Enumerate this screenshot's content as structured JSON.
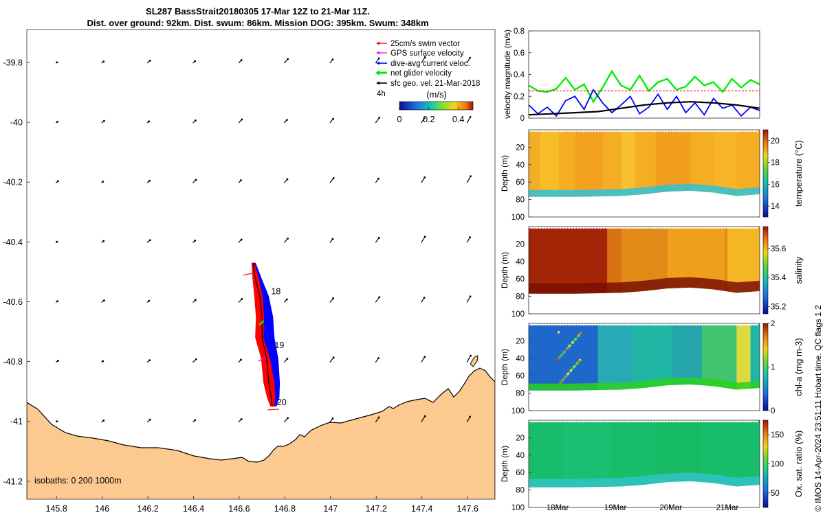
{
  "title": {
    "line1": "SL287 BassStrait20180305 17-Mar 12Z to 21-Mar 11Z.",
    "line2": "Dist. over ground: 92km. Dist. swum: 86km. Mission DOG: 395km. Swum: 348km"
  },
  "copyright": "© IMOS 14-Apr-2024 23:51:11 Hobart time. QC flags 1  2",
  "colors": {
    "land": "#fcc991",
    "swim": "#ff0000",
    "gps": "#ff00ff",
    "dive": "#0000ff",
    "net": "#00ee00",
    "geo": "#000000",
    "threshold": "#ff0000"
  },
  "chart_data": [
    {
      "id": "map",
      "type": "map",
      "xlim": [
        145.67,
        147.72
      ],
      "ylim": [
        -41.26,
        -39.69
      ],
      "xticks": [
        "145.8",
        "146",
        "146.2",
        "146.4",
        "146.6",
        "146.8",
        "147",
        "147.2",
        "147.4",
        "147.6"
      ],
      "xtick_values": [
        145.8,
        146,
        146.2,
        146.4,
        146.6,
        146.8,
        147,
        147.2,
        147.4,
        147.6
      ],
      "yticks": [
        "-39.8",
        "-40",
        "-40.2",
        "-40.4",
        "-40.6",
        "-40.8",
        "-41",
        "-41.2"
      ],
      "ytick_values": [
        -39.8,
        -40,
        -40.2,
        -40.4,
        -40.6,
        -40.8,
        -41,
        -41.2
      ],
      "legend": [
        "25cm/s swim vector",
        "GPS surface velocity",
        "dive-avg current veloc.",
        "net glider velocity",
        "sfc geo. vel. 21-Mar-2018"
      ],
      "legend_extra": "4h",
      "colorbar": {
        "label": "(m/s)",
        "ticks": [
          "0",
          "0.2",
          "0.4"
        ],
        "tick_values": [
          0,
          0.2,
          0.4
        ],
        "range": [
          0,
          0.5
        ]
      },
      "isobaths_label": "isobaths: 0   200  1000m",
      "day_labels": [
        {
          "text": "18",
          "lon": 146.74,
          "lat": -40.575
        },
        {
          "text": "19",
          "lon": 146.755,
          "lat": -40.755
        },
        {
          "text": "20",
          "lon": 146.765,
          "lat": -40.945
        }
      ],
      "track": [
        [
          146.66,
          -40.47
        ],
        [
          146.67,
          -40.52
        ],
        [
          146.69,
          -40.58
        ],
        [
          146.7,
          -40.65
        ],
        [
          146.7,
          -40.72
        ],
        [
          146.72,
          -40.79
        ],
        [
          146.73,
          -40.87
        ],
        [
          146.74,
          -40.92
        ],
        [
          146.745,
          -40.95
        ]
      ]
    },
    {
      "id": "velocity",
      "type": "line",
      "ylabel": "velocity magnitude (m/s)",
      "ylim": [
        0,
        0.8
      ],
      "yticks": [
        "0",
        "0.2",
        "0.4",
        "0.6",
        "0.8"
      ],
      "ytick_values": [
        0,
        0.2,
        0.4,
        0.6,
        0.8
      ],
      "threshold": 0.25,
      "series": [
        {
          "name": "net glider velocity",
          "color": "#00ee00",
          "x": [
            0,
            0.04,
            0.08,
            0.12,
            0.16,
            0.2,
            0.24,
            0.28,
            0.32,
            0.36,
            0.4,
            0.44,
            0.48,
            0.52,
            0.56,
            0.6,
            0.64,
            0.68,
            0.72,
            0.76,
            0.8,
            0.84,
            0.88,
            0.92,
            0.96,
            1
          ],
          "values": [
            0.3,
            0.25,
            0.24,
            0.27,
            0.37,
            0.26,
            0.31,
            0.15,
            0.28,
            0.43,
            0.3,
            0.26,
            0.39,
            0.25,
            0.33,
            0.36,
            0.26,
            0.29,
            0.38,
            0.3,
            0.33,
            0.24,
            0.36,
            0.28,
            0.35,
            0.31
          ]
        },
        {
          "name": "dive-avg current veloc.",
          "color": "#0000ff",
          "x": [
            0,
            0.04,
            0.08,
            0.12,
            0.16,
            0.2,
            0.24,
            0.28,
            0.32,
            0.36,
            0.4,
            0.44,
            0.48,
            0.52,
            0.56,
            0.6,
            0.64,
            0.68,
            0.72,
            0.76,
            0.8,
            0.84,
            0.88,
            0.92,
            0.96,
            1
          ],
          "values": [
            0.12,
            0.04,
            0.1,
            0.02,
            0.16,
            0.2,
            0.08,
            0.26,
            0.14,
            0.05,
            0.12,
            0.2,
            0.04,
            0.1,
            0.22,
            0.08,
            0.2,
            0.05,
            0.14,
            0.03,
            0.18,
            0.09,
            0.12,
            0.02,
            0.1,
            0.07
          ]
        },
        {
          "name": "sfc geo. vel.",
          "color": "#000000",
          "x": [
            0,
            0.1,
            0.2,
            0.3,
            0.4,
            0.5,
            0.6,
            0.7,
            0.8,
            0.9,
            1
          ],
          "values": [
            0.03,
            0.04,
            0.05,
            0.06,
            0.09,
            0.12,
            0.14,
            0.15,
            0.14,
            0.12,
            0.09
          ]
        }
      ]
    },
    {
      "id": "temperature",
      "type": "heatmap",
      "ylabel": "Depth (m)",
      "ylim": [
        0,
        100
      ],
      "yticks": [
        "20",
        "40",
        "60",
        "80",
        "100"
      ],
      "ytick_values": [
        20,
        40,
        60,
        80,
        100
      ],
      "xticks": [],
      "colorbar_label": "temperature (°C)",
      "colorbar_ticks": [
        "14",
        "16",
        "18",
        "20"
      ],
      "colorbar_range": [
        13,
        21
      ],
      "base_color": "#f5ad24",
      "bands": [
        {
          "x": 0.05,
          "w": 0.08,
          "color": "#f6bf29"
        },
        {
          "x": 0.2,
          "w": 0.12,
          "color": "#f3a11f"
        },
        {
          "x": 0.4,
          "w": 0.06,
          "color": "#f8c22d"
        },
        {
          "x": 0.55,
          "w": 0.15,
          "color": "#f29d1e"
        },
        {
          "x": 0.8,
          "w": 0.1,
          "color": "#f7b527"
        }
      ],
      "bottom": {
        "x": [
          0,
          0.2,
          0.4,
          0.5,
          0.6,
          0.7,
          0.8,
          0.9,
          1
        ],
        "depth": [
          77,
          77,
          76,
          74,
          71,
          70,
          72,
          76,
          74
        ]
      },
      "bottom_layer": {
        "color": "#2bc2d8",
        "thickness": 8
      }
    },
    {
      "id": "salinity",
      "type": "heatmap",
      "ylabel": "Depth (m)",
      "ylim": [
        0,
        100
      ],
      "yticks": [
        "20",
        "40",
        "60",
        "80",
        "100"
      ],
      "ytick_values": [
        20,
        40,
        60,
        80,
        100
      ],
      "xticks": [],
      "colorbar_label": "salinity",
      "colorbar_ticks": [
        "35.2",
        "35.4",
        "35.6"
      ],
      "colorbar_range": [
        35.15,
        35.75
      ],
      "base_color": "#e28a16",
      "bands": [
        {
          "x": 0,
          "w": 0.34,
          "color": "#9c1806"
        },
        {
          "x": 0.34,
          "w": 0.06,
          "color": "#d66e12"
        },
        {
          "x": 0.6,
          "w": 0.25,
          "color": "#f0a21e"
        },
        {
          "x": 0.86,
          "w": 0.14,
          "color": "#f6ba27"
        }
      ],
      "bottom": {
        "x": [
          0,
          0.2,
          0.4,
          0.5,
          0.6,
          0.7,
          0.8,
          0.9,
          1
        ],
        "depth": [
          77,
          77,
          76,
          74,
          71,
          70,
          72,
          76,
          74
        ]
      },
      "bottom_layer": {
        "color": "#7a1004",
        "thickness": 12
      }
    },
    {
      "id": "chla",
      "type": "heatmap",
      "ylabel": "Depth (m)",
      "ylim": [
        0,
        100
      ],
      "yticks": [
        "20",
        "40",
        "60",
        "80",
        "100"
      ],
      "ytick_values": [
        20,
        40,
        60,
        80,
        100
      ],
      "xticks": [],
      "colorbar_label": "chl-a (mg m-3)",
      "colorbar_ticks": [
        "0",
        "1",
        "2"
      ],
      "colorbar_range": [
        0,
        2
      ],
      "base_color": "#20b6a6",
      "bands": [
        {
          "x": 0,
          "w": 0.3,
          "color": "#1e5fcf"
        },
        {
          "x": 0.3,
          "w": 0.15,
          "color": "#2aa6b8"
        },
        {
          "x": 0.62,
          "w": 0.13,
          "color": "#26a4ad"
        },
        {
          "x": 0.75,
          "w": 0.15,
          "color": "#45c46a"
        },
        {
          "x": 0.9,
          "w": 0.06,
          "color": "#f2de35"
        }
      ],
      "bottom": {
        "x": [
          0,
          0.2,
          0.4,
          0.5,
          0.6,
          0.7,
          0.8,
          0.9,
          1
        ],
        "depth": [
          77,
          77,
          76,
          74,
          71,
          70,
          72,
          76,
          74
        ]
      },
      "bottom_layer": {
        "color": "#2ad11f",
        "thickness": 8
      }
    },
    {
      "id": "oxygen",
      "type": "heatmap",
      "ylabel": "Depth (m)",
      "ylim": [
        0,
        100
      ],
      "yticks": [
        "20",
        "40",
        "60",
        "80",
        "100"
      ],
      "ytick_values": [
        20,
        40,
        60,
        80,
        100
      ],
      "xticks": [
        "18Mar",
        "19Mar",
        "20Mar",
        "21Mar"
      ],
      "xtick_positions": [
        0.125,
        0.375,
        0.615,
        0.86
      ],
      "colorbar_label": "Ox. sat. ratio (%)",
      "colorbar_ticks": [
        "50",
        "100",
        "150"
      ],
      "colorbar_range": [
        25,
        175
      ],
      "base_color": "#18bd6a",
      "bands": [
        {
          "x": 0.15,
          "w": 0.2,
          "color": "#1cbf72"
        },
        {
          "x": 0.55,
          "w": 0.2,
          "color": "#17b964"
        }
      ],
      "bottom": {
        "x": [
          0,
          0.2,
          0.4,
          0.5,
          0.6,
          0.7,
          0.8,
          0.9,
          1
        ],
        "depth": [
          77,
          77,
          76,
          74,
          71,
          70,
          72,
          76,
          74
        ]
      },
      "bottom_layer": {
        "color": "#33c2c7",
        "thickness": 10
      }
    }
  ]
}
